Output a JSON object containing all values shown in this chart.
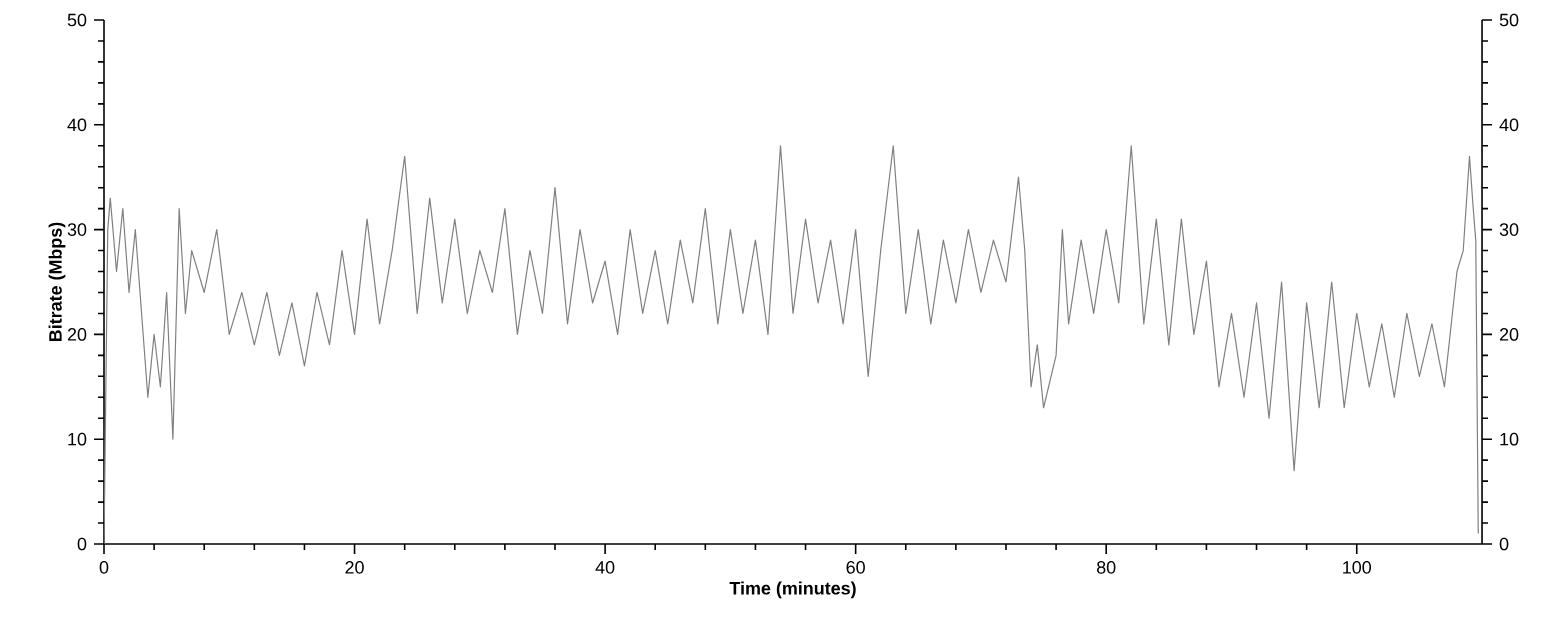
{
  "chart_data": {
    "type": "line",
    "xlabel": "Time (minutes)",
    "ylabel": "Bitrate (Mbps)",
    "xlim": [
      0,
      110
    ],
    "xticks": [
      0,
      20,
      40,
      60,
      80,
      100
    ],
    "ylim": [
      0,
      50
    ],
    "yticks": [
      0,
      10,
      20,
      30,
      40,
      50
    ],
    "y2lim": [
      0,
      50
    ],
    "y2ticks": [
      0,
      10,
      20,
      30,
      40,
      50
    ],
    "series": [
      {
        "color": "#808080",
        "x": [
          0,
          0.3,
          0.5,
          1,
          1.5,
          2,
          2.5,
          3,
          3.5,
          4,
          4.5,
          5,
          5.5,
          6,
          6.5,
          7,
          8,
          9,
          10,
          11,
          12,
          13,
          14,
          15,
          16,
          17,
          18,
          19,
          20,
          21,
          22,
          23,
          24,
          25,
          26,
          27,
          28,
          29,
          30,
          31,
          32,
          33,
          34,
          35,
          36,
          37,
          38,
          39,
          40,
          41,
          42,
          43,
          44,
          45,
          46,
          47,
          48,
          49,
          50,
          51,
          52,
          53,
          54,
          55,
          56,
          57,
          58,
          59,
          60,
          61,
          62,
          63,
          64,
          65,
          66,
          67,
          68,
          69,
          70,
          71,
          72,
          73,
          73.5,
          74,
          74.5,
          75,
          76,
          76.5,
          77,
          78,
          79,
          80,
          81,
          82,
          83,
          84,
          85,
          86,
          87,
          88,
          89,
          90,
          91,
          92,
          93,
          94,
          95,
          96,
          97,
          98,
          99,
          100,
          101,
          102,
          103,
          104,
          105,
          106,
          107,
          108,
          108.5,
          109,
          109.3,
          109.5,
          109.7
        ],
        "values": [
          0,
          30,
          33,
          26,
          32,
          24,
          30,
          22,
          14,
          20,
          15,
          24,
          10,
          32,
          22,
          28,
          24,
          30,
          20,
          24,
          19,
          24,
          18,
          23,
          17,
          24,
          19,
          28,
          20,
          31,
          21,
          28,
          37,
          22,
          33,
          23,
          31,
          22,
          28,
          24,
          32,
          20,
          28,
          22,
          34,
          21,
          30,
          23,
          27,
          20,
          30,
          22,
          28,
          21,
          29,
          23,
          32,
          21,
          30,
          22,
          29,
          20,
          38,
          22,
          31,
          23,
          29,
          21,
          30,
          16,
          28,
          38,
          22,
          30,
          21,
          29,
          23,
          30,
          24,
          29,
          25,
          35,
          28,
          15,
          19,
          13,
          18,
          30,
          21,
          29,
          22,
          30,
          23,
          38,
          21,
          31,
          19,
          31,
          20,
          27,
          15,
          22,
          14,
          23,
          12,
          25,
          7,
          23,
          13,
          25,
          13,
          22,
          15,
          21,
          14,
          22,
          16,
          21,
          15,
          26,
          28,
          37,
          32,
          29,
          1
        ]
      }
    ]
  }
}
